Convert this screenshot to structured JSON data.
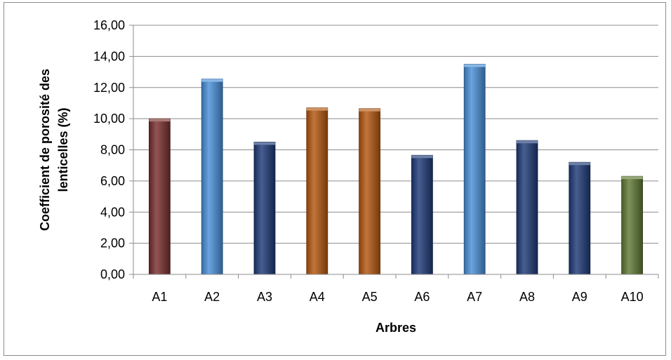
{
  "chart_data": {
    "type": "bar",
    "title": "",
    "xlabel": "Arbres",
    "ylabel": "Coefficient de porosité des lenticelles (%)",
    "ylabel_lines": [
      "Coefficient de porosité des",
      "lenticelles (%)"
    ],
    "categories": [
      "A1",
      "A2",
      "A3",
      "A4",
      "A5",
      "A6",
      "A7",
      "A8",
      "A9",
      "A10"
    ],
    "values": [
      10.0,
      12.55,
      8.5,
      10.7,
      10.65,
      7.65,
      13.5,
      8.6,
      7.2,
      6.3
    ],
    "bar_colors": [
      "#7a2f2f",
      "#4a90d9",
      "#1f3b78",
      "#b5570f",
      "#b5570f",
      "#1f3b78",
      "#4a90d9",
      "#1f3b78",
      "#1f3b78",
      "#5f7a34"
    ],
    "ylim": [
      0,
      16
    ],
    "ytick_step": 2,
    "ytick_labels": [
      "0,00",
      "2,00",
      "4,00",
      "6,00",
      "8,00",
      "10,00",
      "12,00",
      "14,00",
      "16,00"
    ],
    "grid": true,
    "legend": "none"
  }
}
